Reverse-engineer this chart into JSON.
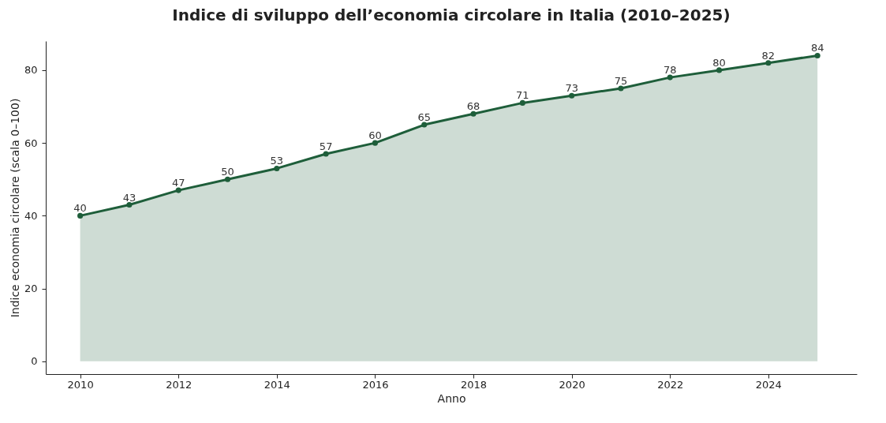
{
  "chart_data": {
    "type": "area",
    "title": "Indice di sviluppo dell’economia circolare in Italia (2010–2025)",
    "xlabel": "Anno",
    "ylabel": "Indice economia circolare (scala 0–100)",
    "x": [
      2010,
      2011,
      2012,
      2013,
      2014,
      2015,
      2016,
      2017,
      2018,
      2019,
      2020,
      2021,
      2022,
      2023,
      2024,
      2025
    ],
    "series": [
      {
        "color": "#1e5e3a",
        "values": [
          40,
          43,
          47,
          50,
          53,
          57,
          60,
          65,
          68,
          71,
          73,
          75,
          78,
          80,
          82,
          84
        ]
      }
    ],
    "xlim": [
      2009.3,
      2025.8
    ],
    "xticks": [
      2010,
      2012,
      2014,
      2016,
      2018,
      2020,
      2022,
      2024
    ],
    "ylim": [
      -3.5,
      88
    ],
    "yticks": [
      0,
      20,
      40,
      60,
      80
    ],
    "marker": "circle",
    "line_style": "solid",
    "data_labels": true,
    "grid": false
  }
}
